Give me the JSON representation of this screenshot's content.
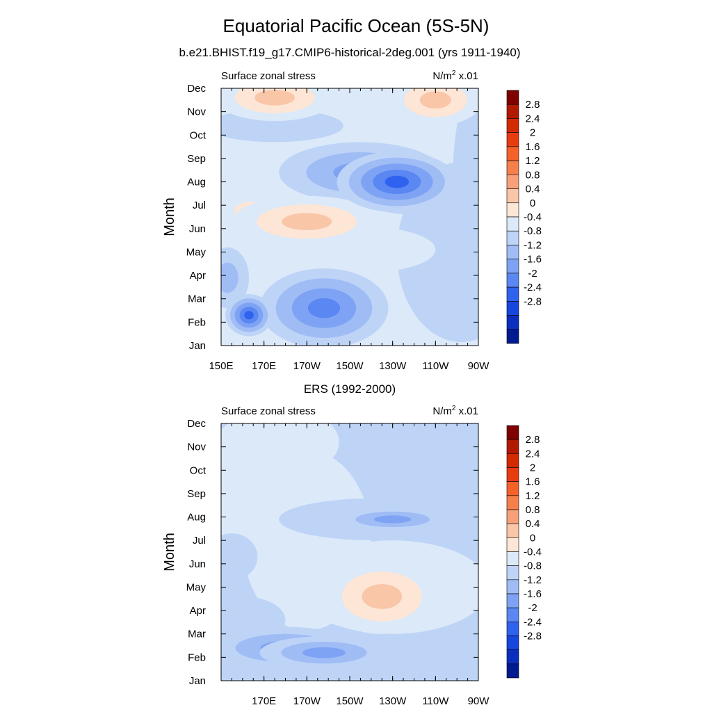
{
  "title": "Equatorial Pacific Ocean (5S-5N)",
  "subtitle": "b.e21.BHIST.f19_g17.CMIP6-historical-2deg.001 (yrs 1911-1940)",
  "chart_data": [
    {
      "type": "heatmap",
      "panel_title": "",
      "left_label": "Surface zonal stress",
      "right_label": "N/m",
      "right_label_sup": "2",
      "right_label_suffix": " x.01",
      "ylabel": "Month",
      "x_ticks": [
        "150E",
        "170E",
        "170W",
        "150W",
        "130W",
        "110W",
        "90W"
      ],
      "y_ticks": [
        "Jan",
        "Feb",
        "Mar",
        "Apr",
        "May",
        "Jun",
        "Jul",
        "Aug",
        "Sep",
        "Oct",
        "Nov",
        "Dec"
      ],
      "xlim_deg_east": [
        150,
        270
      ],
      "colorbar": {
        "labels": [
          "2.8",
          "2.4",
          "2",
          "1.6",
          "1.2",
          "0.8",
          "0.4",
          "0",
          "-0.4",
          "-0.8",
          "-1.2",
          "-1.6",
          "-2",
          "-2.4",
          "-2.8"
        ],
        "colors": [
          "#7f0000",
          "#b21a00",
          "#d42a00",
          "#e83c10",
          "#f4622a",
          "#f6804c",
          "#f7a07a",
          "#f9c6a8",
          "#fde6d6",
          "#dbe9f9",
          "#bed4f7",
          "#9fbcf5",
          "#7fa3f4",
          "#5a87f2",
          "#2f62ee",
          "#1645e0",
          "#0a2fbf",
          "#001a90"
        ]
      },
      "features": [
        {
          "lon": 198,
          "month": 1.6,
          "value": -1.7,
          "w": 30,
          "h": 1.7
        },
        {
          "lon": 163,
          "month": 1.3,
          "value": -2.1,
          "w": 11,
          "h": 0.9
        },
        {
          "lon": 153,
          "month": 2.9,
          "value": -0.7,
          "w": 10,
          "h": 1.3
        },
        {
          "lon": 190,
          "month": 5.3,
          "value": 1.25,
          "w": 35,
          "h": 1.1
        },
        {
          "lon": 215,
          "month": 4.1,
          "value": 0.6,
          "w": 35,
          "h": 1.0
        },
        {
          "lon": 163,
          "month": 5.7,
          "value": 0.9,
          "w": 14,
          "h": 0.9
        },
        {
          "lon": 232,
          "month": 7.0,
          "value": -2.0,
          "w": 28,
          "h": 1.3
        },
        {
          "lon": 215,
          "month": 7.4,
          "value": -1.0,
          "w": 38,
          "h": 1.3
        },
        {
          "lon": 240,
          "month": 6.4,
          "value": -0.6,
          "w": 25,
          "h": 0.8
        },
        {
          "lon": 175,
          "month": 9.4,
          "value": -0.3,
          "w": 32,
          "h": 0.7
        },
        {
          "lon": 175,
          "month": 10.6,
          "value": 1.1,
          "w": 28,
          "h": 1.0
        },
        {
          "lon": 163,
          "month": 10.3,
          "value": 0.6,
          "w": 7,
          "h": 0.4
        },
        {
          "lon": 250,
          "month": 10.5,
          "value": 1.0,
          "w": 22,
          "h": 1.1
        },
        {
          "lon": 243,
          "month": 10.4,
          "value": 0.4,
          "w": 5,
          "h": 0.4
        },
        {
          "lon": 210,
          "month": 11.8,
          "value": 0.4,
          "w": 22,
          "h": 0.6
        },
        {
          "lon": 268,
          "month": 7.0,
          "value": -0.2,
          "w": 10,
          "h": 4.0
        }
      ]
    },
    {
      "type": "heatmap",
      "panel_title": "ERS (1992-2000)",
      "left_label": "Surface zonal stress",
      "right_label": "N/m",
      "right_label_sup": "2",
      "right_label_suffix": " x.01",
      "ylabel": "Month",
      "x_ticks": [
        "",
        "170E",
        "170W",
        "150W",
        "130W",
        "110W",
        "90W"
      ],
      "y_ticks": [
        "Jan",
        "Feb",
        "Mar",
        "Apr",
        "May",
        "Jun",
        "Jul",
        "Aug",
        "Sep",
        "Oct",
        "Nov",
        "Dec"
      ],
      "xlim_deg_east": [
        150,
        270
      ],
      "colorbar": {
        "labels": [
          "2.8",
          "2.4",
          "2",
          "1.6",
          "1.2",
          "0.8",
          "0.4",
          "0",
          "-0.4",
          "-0.8",
          "-1.2",
          "-1.6",
          "-2",
          "-2.4",
          "-2.8"
        ],
        "colors": [
          "#7f0000",
          "#b21a00",
          "#d42a00",
          "#e83c10",
          "#f4622a",
          "#f6804c",
          "#f7a07a",
          "#f9c6a8",
          "#fde6d6",
          "#dbe9f9",
          "#bed4f7",
          "#9fbcf5",
          "#7fa3f4",
          "#5a87f2",
          "#2f62ee",
          "#1645e0",
          "#0a2fbf",
          "#001a90"
        ]
      },
      "features": [
        {
          "lon": 225,
          "month": 3.6,
          "value": 1.3,
          "w": 28,
          "h": 1.6
        },
        {
          "lon": 238,
          "month": 3.0,
          "value": 1.2,
          "w": 16,
          "h": 0.6
        },
        {
          "lon": 218,
          "month": 4.3,
          "value": 0.8,
          "w": 14,
          "h": 0.8
        },
        {
          "lon": 230,
          "month": 4.0,
          "value": 0.5,
          "w": 45,
          "h": 2.0
        },
        {
          "lon": 198,
          "month": 1.2,
          "value": -1.4,
          "w": 30,
          "h": 0.7
        },
        {
          "lon": 180,
          "month": 1.4,
          "value": -1.0,
          "w": 35,
          "h": 0.9
        },
        {
          "lon": 230,
          "month": 6.9,
          "value": -1.2,
          "w": 26,
          "h": 0.5
        },
        {
          "lon": 222,
          "month": 6.9,
          "value": -0.6,
          "w": 45,
          "h": 0.9
        },
        {
          "lon": 225,
          "month": 11.8,
          "value": -1.3,
          "w": 14,
          "h": 0.5
        },
        {
          "lon": 250,
          "month": 10.0,
          "value": -0.4,
          "w": 25,
          "h": 2.2
        },
        {
          "lon": 185,
          "month": 10.2,
          "value": 0.5,
          "w": 20,
          "h": 1.3
        },
        {
          "lon": 170,
          "month": 8.5,
          "value": 0.3,
          "w": 30,
          "h": 3.0
        },
        {
          "lon": 160,
          "month": 2.6,
          "value": -0.6,
          "w": 20,
          "h": 1.0
        },
        {
          "lon": 155,
          "month": 5.3,
          "value": -0.3,
          "w": 12,
          "h": 1.0
        }
      ]
    }
  ]
}
